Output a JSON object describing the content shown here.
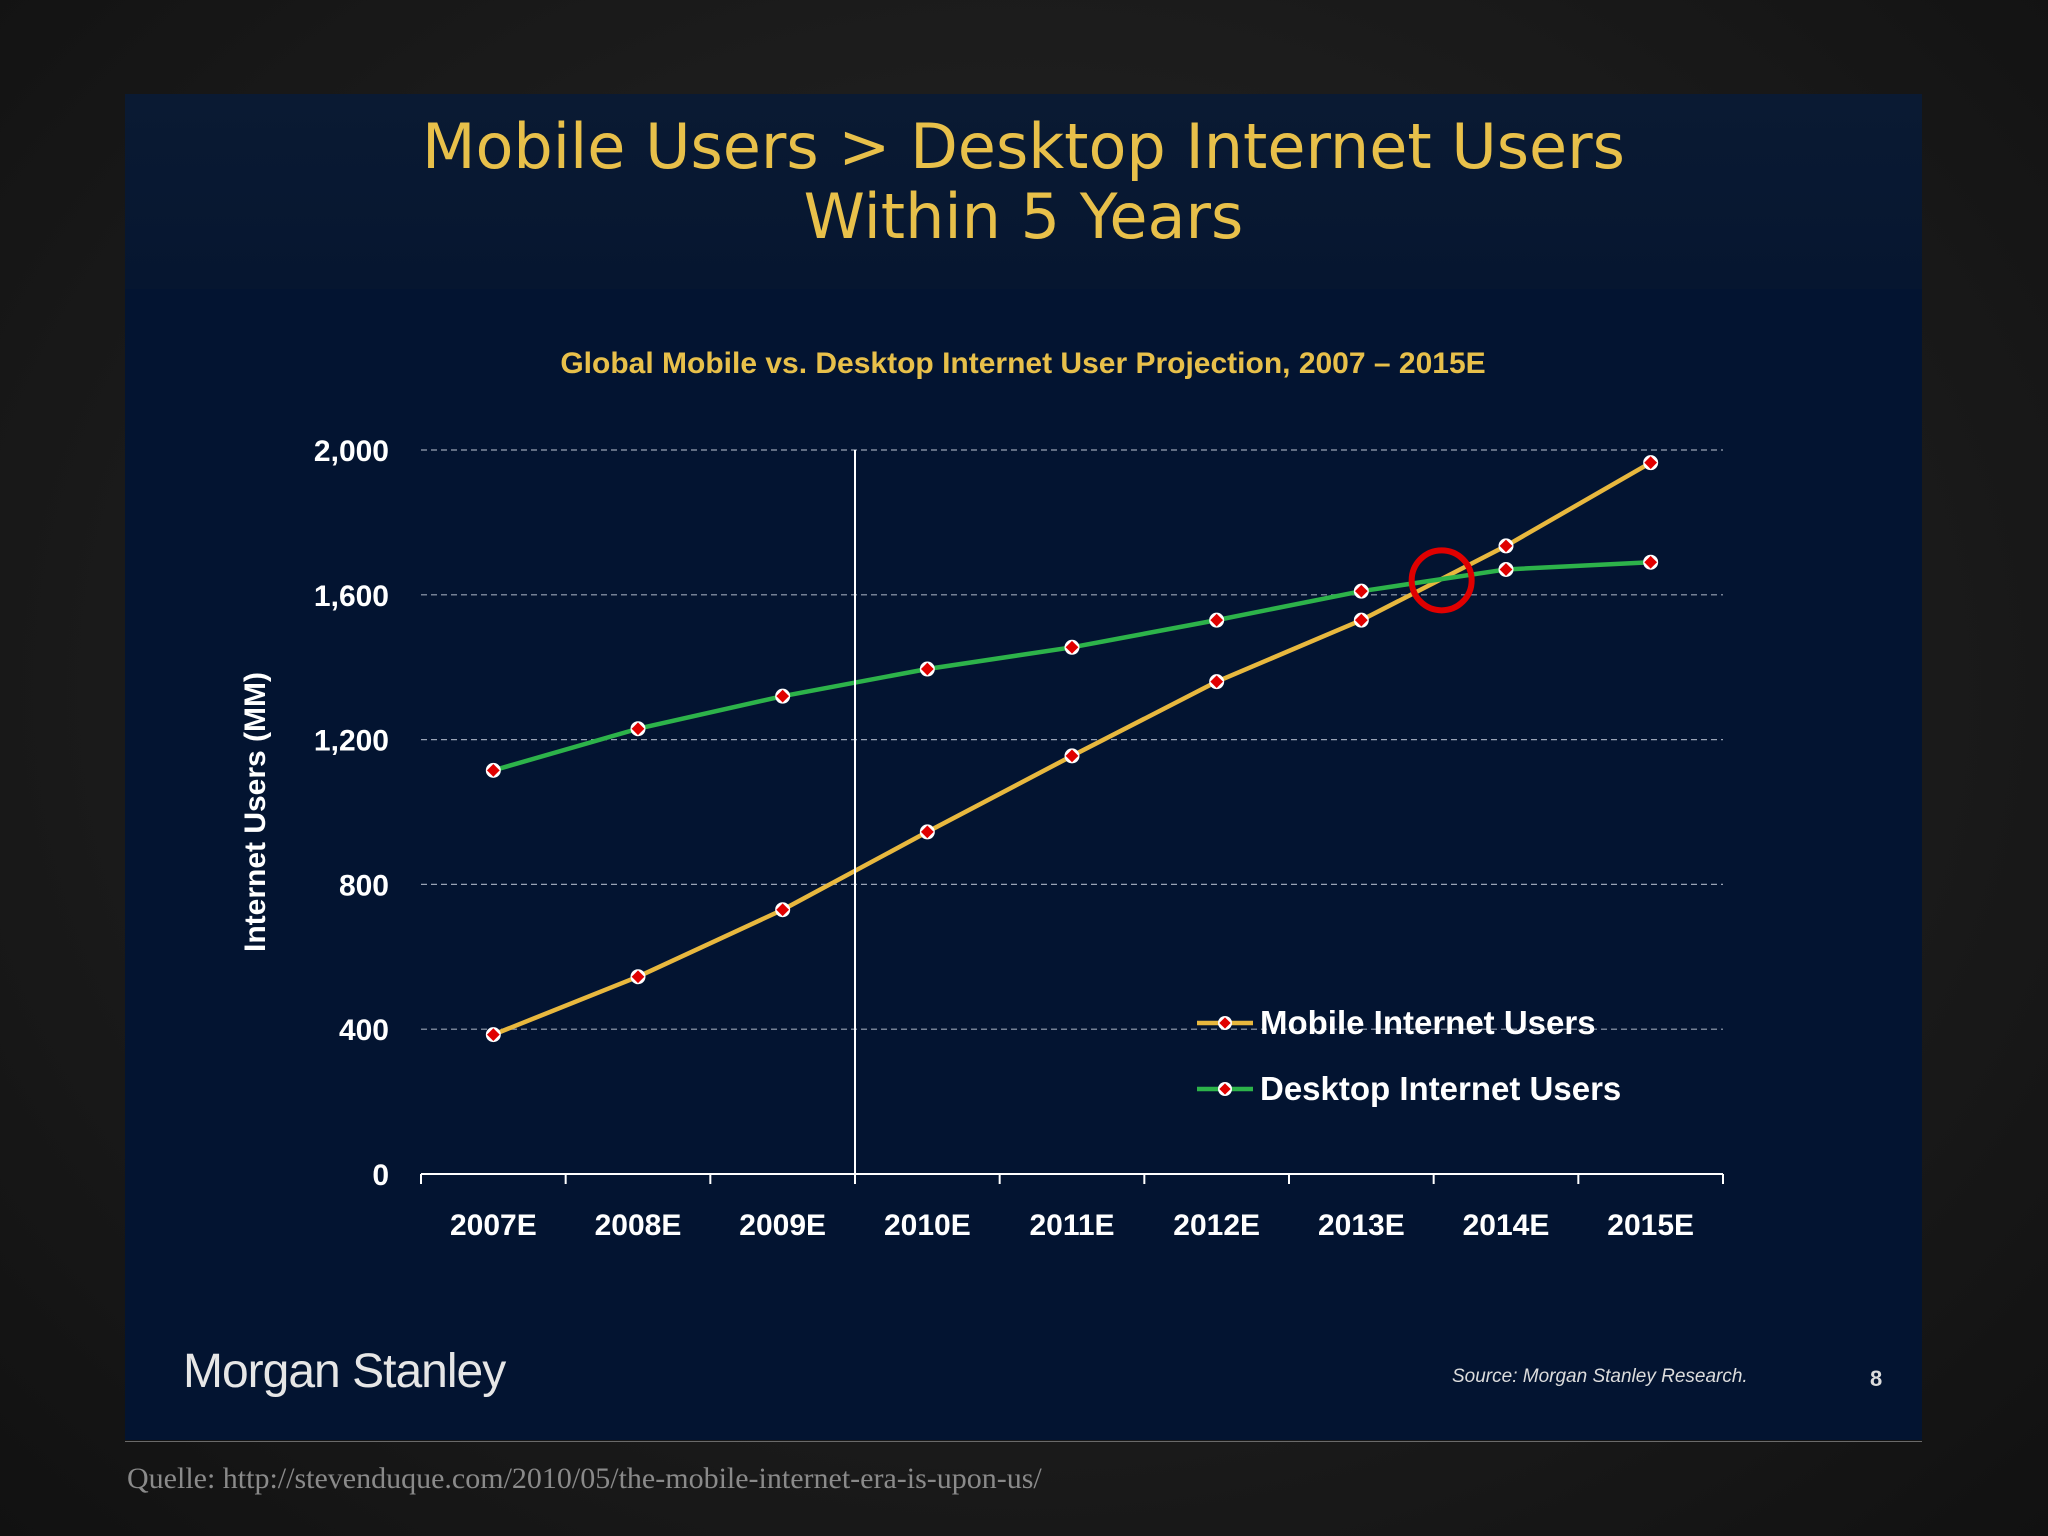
{
  "slide": {
    "title_line1": "Mobile Users > Desktop Internet Users",
    "title_line2": "Within 5 Years",
    "brand": "Morgan Stanley",
    "source": "Source: Morgan Stanley Research.",
    "page_number": "8"
  },
  "caption": "Quelle: http://stevenduque.com/2010/05/the-mobile-internet-era-is-upon-us/",
  "colors": {
    "mobile": "#e8b83e",
    "desktop": "#2db34a",
    "marker": "#e00000",
    "highlight_circle": "#e00000",
    "title": "#e8c04a"
  },
  "chart_data": {
    "type": "line",
    "title": "Global Mobile vs. Desktop Internet User Projection, 2007 – 2015E",
    "xlabel": "",
    "ylabel": "Internet Users (MM)",
    "categories": [
      "2007E",
      "2008E",
      "2009E",
      "2010E",
      "2011E",
      "2012E",
      "2013E",
      "2014E",
      "2015E"
    ],
    "ylim": [
      0,
      2000
    ],
    "yticks": [
      0,
      400,
      800,
      1200,
      1600,
      2000
    ],
    "ytick_labels": [
      "0",
      "400",
      "800",
      "1,200",
      "1,600",
      "2,000"
    ],
    "grid": "horizontal dashed",
    "legend_position": "center-right",
    "series": [
      {
        "name": "Mobile Internet Users",
        "values": [
          385,
          545,
          730,
          945,
          1155,
          1360,
          1530,
          1735,
          1965
        ]
      },
      {
        "name": "Desktop Internet Users",
        "values": [
          1115,
          1230,
          1320,
          1395,
          1455,
          1530,
          1610,
          1670,
          1690
        ]
      }
    ],
    "annotations": [
      {
        "type": "vertical-line",
        "between": [
          "2009E",
          "2010E"
        ]
      },
      {
        "type": "highlight-circle",
        "label": "",
        "x_between": [
          "2013E",
          "2014E"
        ],
        "y": 1640
      }
    ]
  }
}
